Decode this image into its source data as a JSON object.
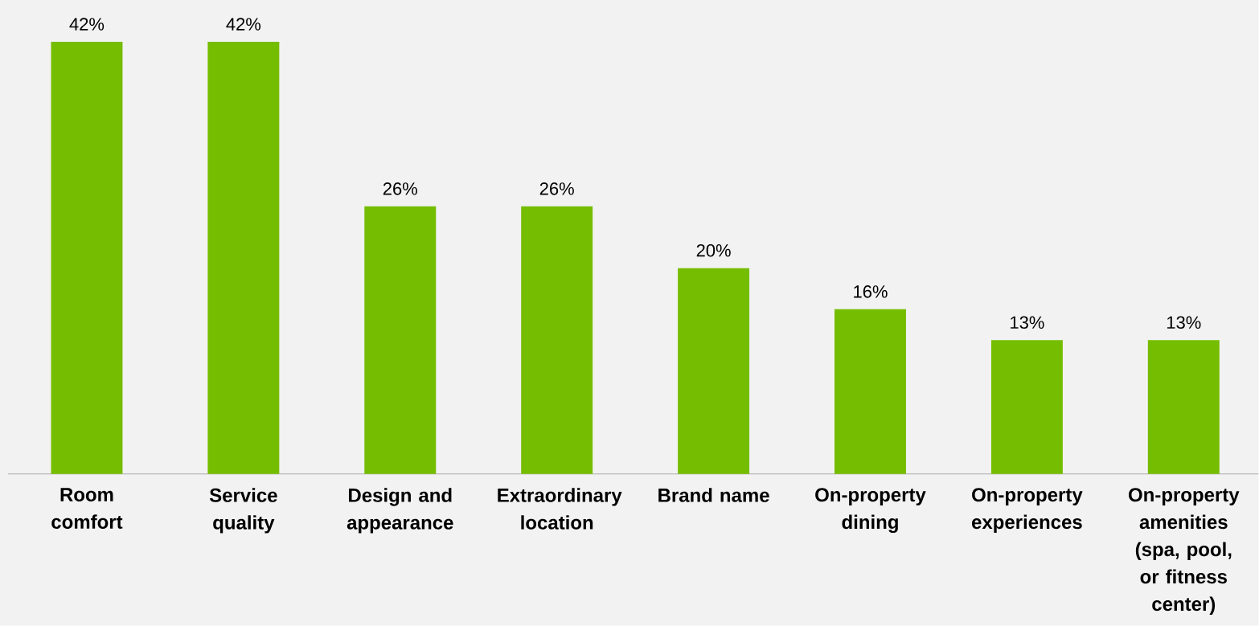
{
  "chart_data": {
    "type": "bar",
    "categories": [
      "Room comfort",
      "Service quality",
      "Design and appearance",
      "Extraordinary location",
      "Brand name",
      "On-property dining",
      "On-property experiences",
      "On-property amenities (spa, pool, or fitness center)"
    ],
    "values": [
      42,
      42,
      26,
      26,
      20,
      16,
      13,
      13
    ],
    "value_labels": [
      "42%",
      "42%",
      "26%",
      "26%",
      "20%",
      "16%",
      "13%",
      "13%"
    ],
    "color": "#75bd00"
  }
}
